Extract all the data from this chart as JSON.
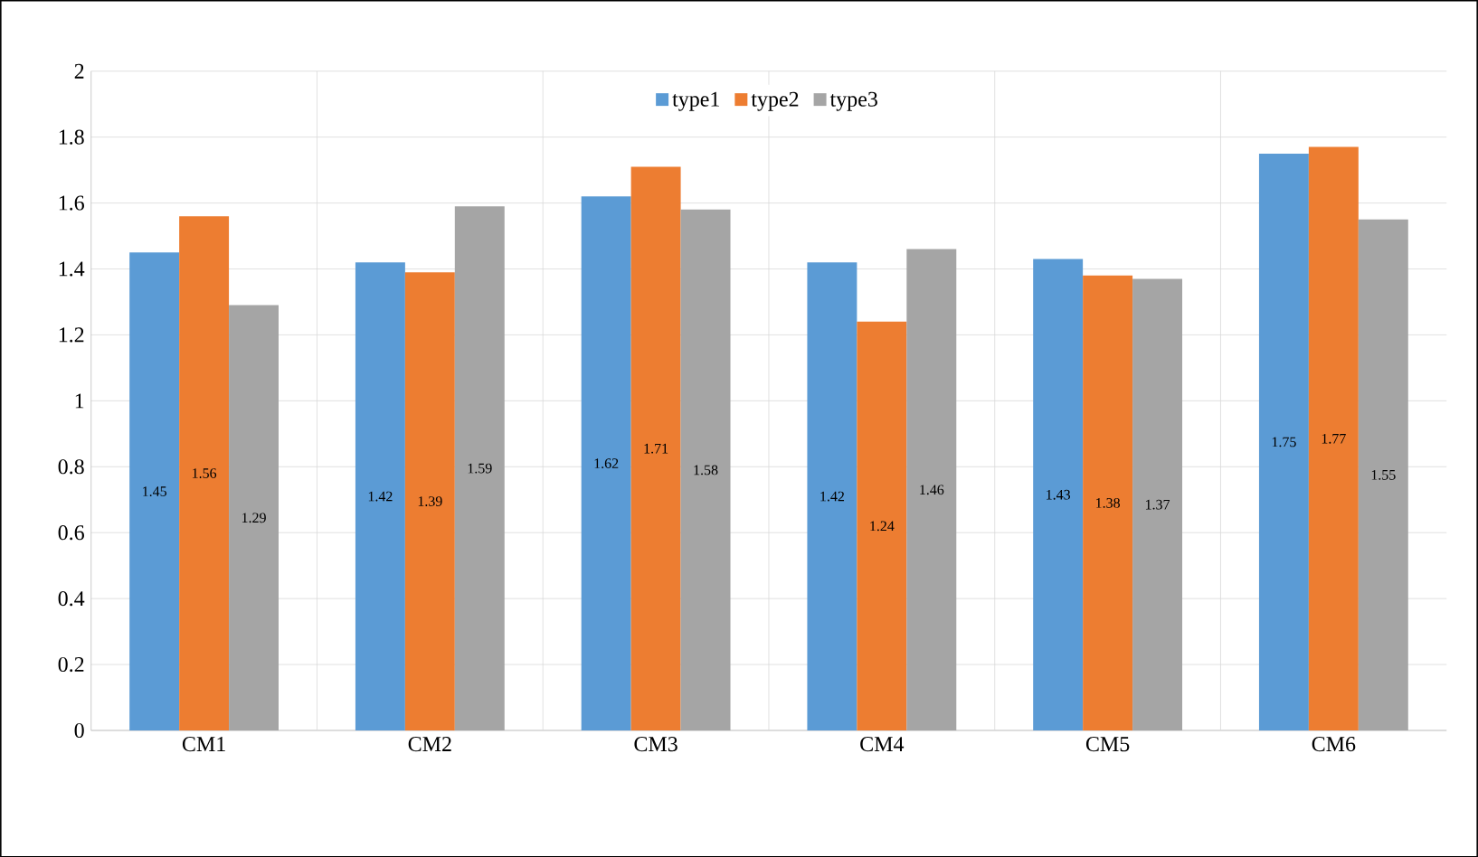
{
  "chart_data": {
    "type": "bar",
    "categories": [
      "CM1",
      "CM2",
      "CM3",
      "CM4",
      "CM5",
      "CM6"
    ],
    "series": [
      {
        "name": "type1",
        "color": "#5b9bd5",
        "values": [
          1.45,
          1.42,
          1.62,
          1.42,
          1.43,
          1.75
        ]
      },
      {
        "name": "type2",
        "color": "#ed7d31",
        "values": [
          1.56,
          1.39,
          1.71,
          1.24,
          1.38,
          1.77
        ]
      },
      {
        "name": "type3",
        "color": "#a5a5a5",
        "values": [
          1.29,
          1.59,
          1.58,
          1.46,
          1.37,
          1.55
        ]
      }
    ],
    "ylim": [
      0,
      2
    ],
    "yticks": [
      0,
      0.2,
      0.4,
      0.6,
      0.8,
      1,
      1.2,
      1.4,
      1.6,
      1.8,
      2
    ],
    "grid": true,
    "legend": "top",
    "data_labels": true
  }
}
